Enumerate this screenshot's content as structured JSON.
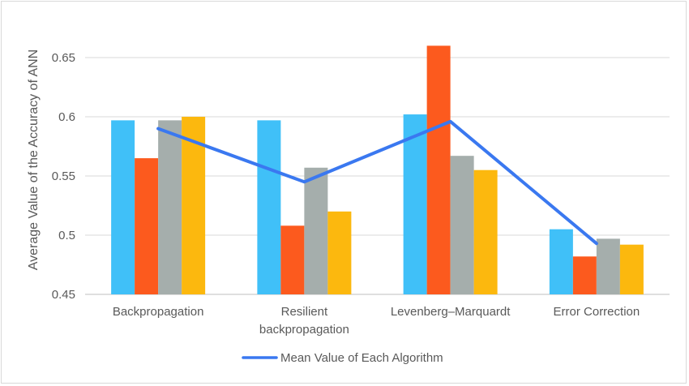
{
  "chart_data": {
    "type": "bar",
    "title": "",
    "xlabel": "",
    "ylabel": "Average Value of the Accuracy of ANN",
    "ylim": [
      0.45,
      0.67
    ],
    "yticks": [
      "0.45",
      "0.5",
      "0.55",
      "0.6",
      "0.65"
    ],
    "ytick_values": [
      0.45,
      0.5,
      0.55,
      0.6,
      0.65
    ],
    "grid": true,
    "legend_position": "bottom",
    "categories": [
      [
        "Backpropagation"
      ],
      [
        "Resilient",
        "backpropagation"
      ],
      [
        "Levenberg–Marquardt"
      ],
      [
        "Error Correction"
      ]
    ],
    "series": [
      {
        "color": "#40c0f8",
        "values": [
          0.597,
          0.597,
          0.602,
          0.505
        ]
      },
      {
        "color": "#fc5a1e",
        "values": [
          0.565,
          0.508,
          0.66,
          0.482
        ]
      },
      {
        "color": "#a5aeac",
        "values": [
          0.597,
          0.557,
          0.567,
          0.497
        ]
      },
      {
        "color": "#fcb80e",
        "values": [
          0.6,
          0.52,
          0.555,
          0.492
        ]
      }
    ],
    "line_series": {
      "name": "Mean Value of Each Algorithm",
      "color": "#3a78f0",
      "values": [
        0.59,
        0.545,
        0.596,
        0.493
      ]
    }
  }
}
